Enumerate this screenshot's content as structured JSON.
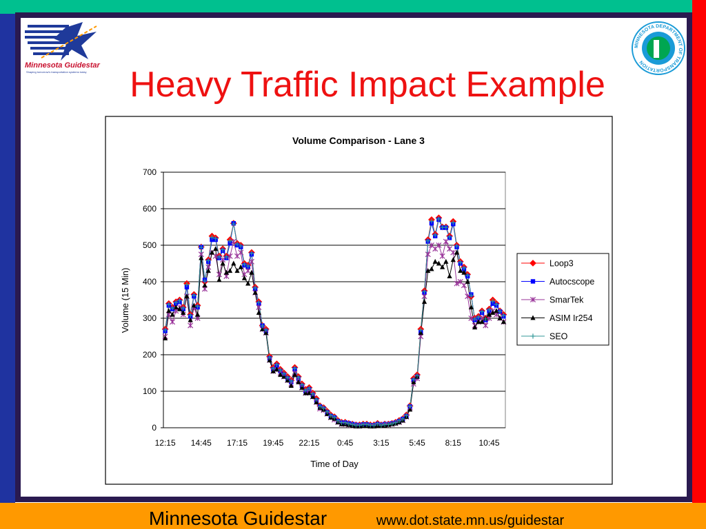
{
  "title": "Heavy Traffic Impact Example",
  "logo_left": {
    "name": "Minnesota Guidestar",
    "tagline": "Shaping tomorrow's transportation systems today"
  },
  "logo_right": {
    "text": "MINNESOTA DEPARTMENT OF TRANSPORTATION"
  },
  "footer": {
    "name": "Minnesota Guidestar",
    "url": "www.dot.state.mn.us/guidestar"
  },
  "chart_data": {
    "type": "line",
    "title": "Volume Comparison - Lane 3",
    "x_label": "Time of Day",
    "y_label": "Volume (15 Min)",
    "categories": [
      "12:15",
      null,
      null,
      null,
      null,
      null,
      null,
      null,
      null,
      null,
      "14:45",
      null,
      null,
      null,
      null,
      null,
      null,
      null,
      null,
      null,
      "17:15",
      null,
      null,
      null,
      null,
      null,
      null,
      null,
      null,
      null,
      "19:45",
      null,
      null,
      null,
      null,
      null,
      null,
      null,
      null,
      null,
      "22:15",
      null,
      null,
      null,
      null,
      null,
      null,
      null,
      null,
      null,
      "0:45",
      null,
      null,
      null,
      null,
      null,
      null,
      null,
      null,
      null,
      "3:15",
      null,
      null,
      null,
      null,
      null,
      null,
      null,
      null,
      null,
      "5:45",
      null,
      null,
      null,
      null,
      null,
      null,
      null,
      null,
      null,
      "8:15",
      null,
      null,
      null,
      null,
      null,
      null,
      null,
      null,
      null,
      "10:45",
      null,
      null,
      null,
      null
    ],
    "ylim": [
      0,
      700
    ],
    "yticks": [
      0,
      100,
      200,
      300,
      400,
      500,
      600,
      700
    ],
    "grid": true,
    "legend": "right",
    "series": [
      {
        "name": "Loop3",
        "color": "#ff0000",
        "marker": "diamond",
        "values": [
          270,
          340,
          330,
          345,
          350,
          330,
          395,
          310,
          365,
          335,
          495,
          400,
          460,
          525,
          520,
          470,
          490,
          470,
          515,
          560,
          505,
          500,
          450,
          445,
          480,
          385,
          345,
          280,
          270,
          195,
          165,
          175,
          160,
          150,
          140,
          130,
          165,
          140,
          120,
          105,
          110,
          95,
          80,
          60,
          55,
          45,
          35,
          30,
          20,
          15,
          15,
          12,
          10,
          8,
          8,
          10,
          10,
          8,
          8,
          12,
          8,
          10,
          10,
          12,
          15,
          20,
          25,
          35,
          60,
          135,
          145,
          270,
          375,
          515,
          570,
          530,
          575,
          550,
          550,
          525,
          565,
          500,
          455,
          440,
          420,
          360,
          300,
          305,
          320,
          300,
          325,
          350,
          340,
          320,
          310
        ]
      },
      {
        "name": "Autocscope",
        "color": "#0000ff",
        "marker": "square",
        "values": [
          265,
          335,
          325,
          340,
          345,
          325,
          385,
          305,
          360,
          330,
          495,
          405,
          455,
          515,
          515,
          465,
          485,
          465,
          505,
          560,
          500,
          495,
          445,
          440,
          475,
          380,
          340,
          280,
          265,
          190,
          160,
          170,
          155,
          145,
          135,
          125,
          160,
          135,
          115,
          100,
          105,
          90,
          75,
          58,
          52,
          42,
          32,
          28,
          18,
          14,
          14,
          12,
          10,
          8,
          7,
          9,
          9,
          7,
          7,
          10,
          8,
          10,
          10,
          12,
          14,
          18,
          24,
          32,
          58,
          130,
          140,
          262,
          370,
          510,
          560,
          525,
          570,
          548,
          548,
          520,
          558,
          495,
          450,
          435,
          415,
          365,
          295,
          300,
          315,
          295,
          320,
          340,
          335,
          318,
          305
        ]
      },
      {
        "name": "SmarTek",
        "color": "#993399",
        "marker": "star",
        "values": [
          250,
          310,
          290,
          320,
          330,
          310,
          360,
          280,
          330,
          300,
          475,
          380,
          440,
          480,
          470,
          420,
          460,
          415,
          470,
          510,
          470,
          480,
          420,
          430,
          455,
          370,
          330,
          270,
          260,
          185,
          155,
          160,
          150,
          140,
          130,
          120,
          150,
          130,
          110,
          95,
          100,
          85,
          70,
          52,
          48,
          38,
          28,
          22,
          15,
          10,
          10,
          8,
          6,
          5,
          5,
          6,
          6,
          5,
          5,
          8,
          6,
          8,
          8,
          10,
          12,
          15,
          20,
          30,
          55,
          120,
          135,
          250,
          360,
          475,
          500,
          490,
          500,
          470,
          510,
          490,
          480,
          395,
          400,
          390,
          360,
          300,
          280,
          290,
          300,
          280,
          300,
          320,
          310,
          300,
          290
        ]
      },
      {
        "name": "ASIM Ir254",
        "color": "#000000",
        "marker": "triangle",
        "values": [
          245,
          320,
          310,
          330,
          325,
          315,
          360,
          295,
          335,
          310,
          465,
          390,
          430,
          480,
          490,
          405,
          450,
          425,
          430,
          450,
          430,
          440,
          410,
          395,
          425,
          370,
          315,
          270,
          260,
          185,
          155,
          160,
          145,
          140,
          130,
          115,
          145,
          125,
          110,
          95,
          95,
          85,
          70,
          55,
          50,
          38,
          28,
          25,
          15,
          10,
          10,
          8,
          6,
          4,
          4,
          5,
          5,
          4,
          4,
          6,
          5,
          6,
          8,
          10,
          12,
          15,
          20,
          30,
          50,
          125,
          140,
          260,
          345,
          430,
          435,
          455,
          450,
          440,
          455,
          415,
          460,
          480,
          430,
          425,
          400,
          330,
          275,
          290,
          290,
          300,
          310,
          315,
          320,
          300,
          290
        ]
      },
      {
        "name": "SEO",
        "color": "#339999",
        "marker": "plus",
        "values": [
          268,
          338,
          328,
          343,
          348,
          328,
          392,
          308,
          363,
          333,
          494,
          402,
          458,
          522,
          518,
          468,
          488,
          468,
          512,
          558,
          503,
          498,
          448,
          443,
          478,
          383,
          343,
          279,
          268,
          193,
          163,
          173,
          158,
          148,
          138,
          128,
          163,
          138,
          118,
          103,
          108,
          93,
          78,
          59,
          54,
          44,
          34,
          29,
          19,
          14,
          14,
          11,
          9,
          7,
          7,
          9,
          9,
          7,
          7,
          11,
          7,
          9,
          9,
          11,
          14,
          19,
          24,
          34,
          59,
          133,
          143,
          268,
          373,
          512,
          566,
          528,
          572,
          549,
          549,
          523,
          562,
          498,
          453,
          438,
          418,
          362,
          298,
          303,
          318,
          298,
          323,
          347,
          338,
          319,
          308
        ]
      }
    ]
  }
}
